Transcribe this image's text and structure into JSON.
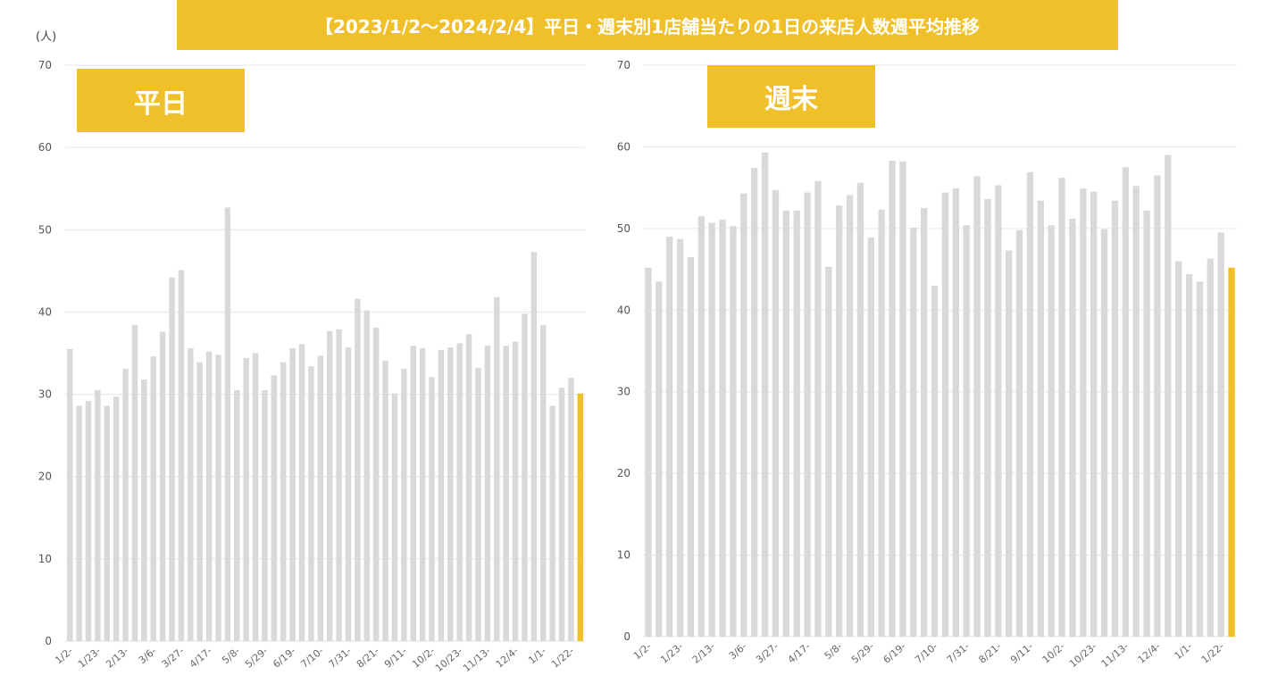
{
  "title": "【2023/1/2〜2024/2/4】平日・週末別1店舗当たりの1日の来店人数週平均推移",
  "y_unit": "(人)",
  "colors": {
    "accent": "#f0c02b",
    "bar": "#d9d9d9",
    "grid": "#e6e6e6"
  },
  "chart_data": [
    {
      "type": "bar",
      "panel_label": "平日",
      "ylim": [
        0,
        70
      ],
      "yticks": [
        0,
        10,
        20,
        30,
        40,
        50,
        60,
        70
      ],
      "x_tick_labels": [
        "1/2-",
        "1/23-",
        "2/13-",
        "3/6-",
        "3/27-",
        "4/17-",
        "5/8-",
        "5/29-",
        "6/19-",
        "7/10-",
        "7/31-",
        "8/21-",
        "9/11-",
        "10/2-",
        "10/23-",
        "11/13-",
        "12/4-",
        "1/1-",
        "1/22-"
      ],
      "highlight_last": true,
      "values": [
        35.5,
        28.6,
        29.2,
        30.5,
        28.6,
        29.7,
        33.1,
        38.4,
        31.8,
        34.6,
        37.6,
        44.2,
        45.1,
        35.6,
        33.9,
        35.2,
        34.8,
        52.7,
        30.5,
        34.4,
        35.0,
        30.5,
        32.3,
        33.9,
        35.6,
        36.1,
        33.4,
        34.7,
        37.7,
        37.9,
        35.7,
        41.6,
        40.2,
        38.1,
        34.1,
        30.1,
        33.1,
        35.9,
        35.6,
        32.1,
        35.4,
        35.7,
        36.2,
        37.3,
        33.2,
        35.9,
        41.8,
        35.9,
        36.4,
        39.8,
        47.3,
        38.4,
        28.6,
        30.8,
        32.0,
        30.1
      ]
    },
    {
      "type": "bar",
      "panel_label": "週末",
      "ylim": [
        0,
        70
      ],
      "yticks": [
        0,
        10,
        20,
        30,
        40,
        50,
        60,
        70
      ],
      "x_tick_labels": [
        "1/2-",
        "1/23-",
        "2/13-",
        "3/6-",
        "3/27-",
        "4/17-",
        "5/8-",
        "5/29-",
        "6/19-",
        "7/10-",
        "7/31-",
        "8/21-",
        "9/11-",
        "10/2-",
        "10/23-",
        "11/13-",
        "12/4-",
        "1/1-",
        "1/22-"
      ],
      "highlight_last": true,
      "values": [
        45.2,
        43.5,
        49.0,
        48.7,
        46.5,
        51.5,
        50.7,
        51.1,
        50.3,
        54.3,
        57.4,
        59.3,
        54.7,
        52.2,
        52.2,
        54.4,
        55.8,
        45.3,
        52.8,
        54.1,
        55.6,
        48.9,
        52.3,
        58.3,
        58.2,
        50.1,
        52.5,
        43.0,
        54.4,
        54.9,
        50.4,
        56.4,
        53.6,
        55.3,
        47.3,
        49.8,
        56.9,
        53.4,
        50.4,
        56.2,
        51.2,
        54.9,
        54.5,
        49.9,
        53.4,
        57.5,
        55.2,
        52.2,
        56.5,
        59.0,
        46.0,
        44.4,
        43.5,
        46.3,
        49.5,
        45.2
      ]
    }
  ]
}
